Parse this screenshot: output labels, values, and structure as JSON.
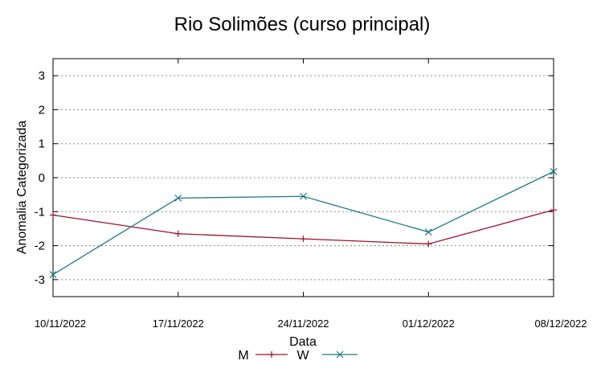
{
  "chart_data": {
    "type": "line",
    "title": "Rio Solimões (curso principal)",
    "xlabel": "Data",
    "ylabel": "Anomalia Categorizada",
    "categories": [
      "10/11/2022",
      "17/11/2022",
      "24/11/2022",
      "01/12/2022",
      "08/12/2022"
    ],
    "y_ticks": [
      "3",
      "2",
      "1",
      "0",
      "-1",
      "-2",
      "-3"
    ],
    "ylim": [
      -3.5,
      3.5
    ],
    "grid": "horizontal dotted",
    "legend_position": "bottom-center",
    "series": [
      {
        "name": "M",
        "color": "#a0102a",
        "marker": "+",
        "values": [
          -1.1,
          -1.65,
          -1.8,
          -1.95,
          -0.95
        ]
      },
      {
        "name": "W",
        "color": "#1f7a85",
        "marker": "x",
        "values": [
          -2.85,
          -0.6,
          -0.55,
          -1.6,
          0.18
        ]
      }
    ]
  }
}
